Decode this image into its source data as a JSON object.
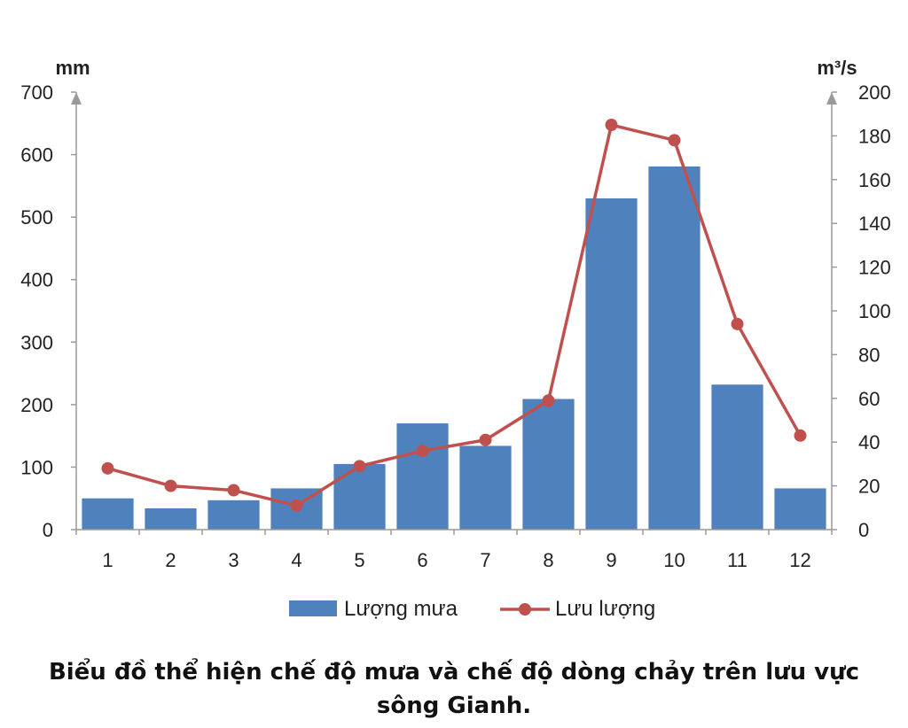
{
  "chart_data": {
    "type": "bar+line",
    "categories": [
      "1",
      "2",
      "3",
      "4",
      "5",
      "6",
      "7",
      "8",
      "9",
      "10",
      "11",
      "12"
    ],
    "series": [
      {
        "name": "Lượng mưa",
        "type": "bar",
        "axis": "left",
        "color": "#4f81bd",
        "values": [
          50,
          34,
          47,
          66,
          105,
          170,
          134,
          209,
          530,
          581,
          232,
          66
        ]
      },
      {
        "name": "Lưu lượng",
        "type": "line",
        "axis": "right",
        "color": "#c0504d",
        "values": [
          28,
          20,
          18,
          11,
          29,
          36,
          41,
          59,
          185,
          178,
          94,
          43
        ]
      }
    ],
    "y_left": {
      "unit": "mm",
      "ylim": [
        0,
        700
      ],
      "ticks": [
        "0",
        "100",
        "200",
        "300",
        "400",
        "500",
        "600",
        "700"
      ]
    },
    "y_right": {
      "unit": "m³/s",
      "ylim": [
        0,
        200
      ],
      "ticks": [
        "0",
        "20",
        "40",
        "60",
        "80",
        "100",
        "120",
        "140",
        "160",
        "180",
        "200"
      ]
    },
    "grid": false,
    "legend_position": "bottom",
    "caption": "Biểu đồ thể hiện chế độ mưa và chế độ dòng chảy trên lưu vực sông Gianh."
  }
}
